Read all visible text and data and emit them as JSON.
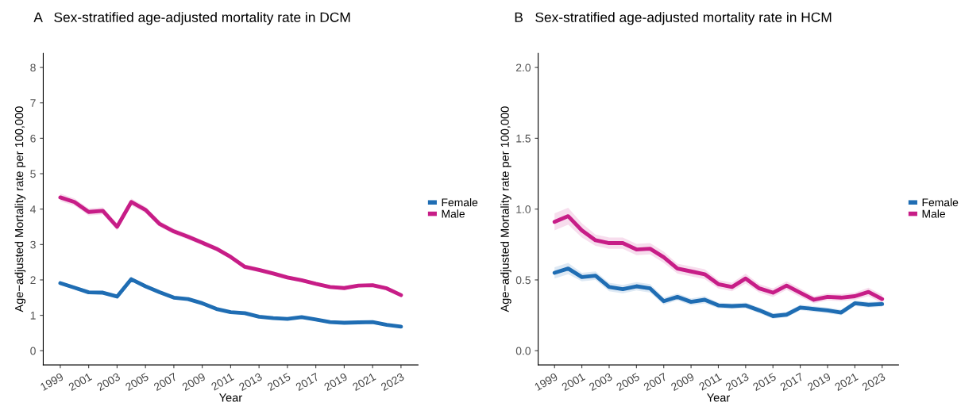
{
  "chart_data": [
    {
      "type": "line",
      "title": "A   Sex-stratified age-adjusted mortality rate in DCM",
      "xlabel": "Year",
      "ylabel": "Age−adjusted Mortality rate per 100,000",
      "x": [
        1999,
        2000,
        2001,
        2002,
        2003,
        2004,
        2005,
        2006,
        2007,
        2008,
        2009,
        2010,
        2011,
        2012,
        2013,
        2014,
        2015,
        2016,
        2017,
        2018,
        2019,
        2020,
        2021,
        2022,
        2023
      ],
      "series": [
        {
          "name": "Female",
          "color": "#1f6db3",
          "values": [
            1.91,
            1.78,
            1.65,
            1.64,
            1.53,
            2.02,
            1.82,
            1.65,
            1.5,
            1.46,
            1.34,
            1.18,
            1.09,
            1.06,
            0.96,
            0.92,
            0.9,
            0.95,
            0.88,
            0.81,
            0.79,
            0.8,
            0.81,
            0.73,
            0.68
          ],
          "lower": [
            1.86,
            1.73,
            1.6,
            1.59,
            1.48,
            1.96,
            1.77,
            1.6,
            1.46,
            1.42,
            1.3,
            1.14,
            1.05,
            1.02,
            0.92,
            0.88,
            0.86,
            0.91,
            0.84,
            0.77,
            0.75,
            0.76,
            0.77,
            0.69,
            0.64
          ],
          "upper": [
            1.96,
            1.83,
            1.7,
            1.69,
            1.58,
            2.08,
            1.87,
            1.7,
            1.54,
            1.5,
            1.38,
            1.22,
            1.13,
            1.1,
            1.0,
            0.96,
            0.94,
            0.99,
            0.92,
            0.85,
            0.83,
            0.84,
            0.85,
            0.77,
            0.72
          ]
        },
        {
          "name": "Male",
          "color": "#c71d87",
          "values": [
            4.33,
            4.2,
            3.92,
            3.95,
            3.5,
            4.2,
            3.98,
            3.58,
            3.37,
            3.22,
            3.05,
            2.88,
            2.65,
            2.37,
            2.28,
            2.18,
            2.07,
            1.99,
            1.89,
            1.8,
            1.77,
            1.84,
            1.85,
            1.76,
            1.57
          ],
          "lower": [
            4.22,
            4.1,
            3.82,
            3.85,
            3.4,
            4.1,
            3.89,
            3.5,
            3.29,
            3.14,
            2.98,
            2.81,
            2.59,
            2.31,
            2.22,
            2.12,
            2.01,
            1.94,
            1.84,
            1.75,
            1.72,
            1.79,
            1.8,
            1.71,
            1.52
          ],
          "upper": [
            4.44,
            4.3,
            4.02,
            4.05,
            3.6,
            4.3,
            4.07,
            3.66,
            3.45,
            3.3,
            3.12,
            2.95,
            2.71,
            2.43,
            2.34,
            2.24,
            2.13,
            2.04,
            1.94,
            1.85,
            1.82,
            1.89,
            1.9,
            1.81,
            1.62
          ]
        }
      ],
      "xlim": [
        1997.8,
        2024.2
      ],
      "xticks": [
        1999,
        2001,
        2003,
        2005,
        2007,
        2009,
        2011,
        2013,
        2015,
        2017,
        2019,
        2021,
        2023
      ],
      "ylim": [
        -0.4,
        8.4
      ],
      "yticks": [
        0,
        1,
        2,
        3,
        4,
        5,
        6,
        7,
        8
      ],
      "grid": false,
      "legend": "right"
    },
    {
      "type": "line",
      "title": "B   Sex-stratified age-adjusted mortality rate in HCM",
      "xlabel": "Year",
      "ylabel": "Age−adjusted Mortality rate per 100,000",
      "x": [
        1999,
        2000,
        2001,
        2002,
        2003,
        2004,
        2005,
        2006,
        2007,
        2008,
        2009,
        2010,
        2011,
        2012,
        2013,
        2014,
        2015,
        2016,
        2017,
        2018,
        2019,
        2020,
        2021,
        2022,
        2023
      ],
      "series": [
        {
          "name": "Female",
          "color": "#1f6db3",
          "values": [
            0.55,
            0.58,
            0.52,
            0.53,
            0.45,
            0.435,
            0.455,
            0.44,
            0.35,
            0.38,
            0.345,
            0.36,
            0.32,
            0.315,
            0.32,
            0.285,
            0.245,
            0.255,
            0.305,
            0.295,
            0.285,
            0.27,
            0.335,
            0.325,
            0.33
          ],
          "lower": [
            0.51,
            0.54,
            0.49,
            0.5,
            0.42,
            0.405,
            0.425,
            0.41,
            0.325,
            0.355,
            0.32,
            0.335,
            0.3,
            0.295,
            0.3,
            0.265,
            0.225,
            0.235,
            0.285,
            0.275,
            0.265,
            0.25,
            0.315,
            0.305,
            0.31
          ],
          "upper": [
            0.59,
            0.62,
            0.55,
            0.56,
            0.48,
            0.465,
            0.485,
            0.47,
            0.375,
            0.405,
            0.37,
            0.385,
            0.34,
            0.335,
            0.34,
            0.305,
            0.265,
            0.275,
            0.325,
            0.315,
            0.305,
            0.29,
            0.355,
            0.345,
            0.35
          ]
        },
        {
          "name": "Male",
          "color": "#c71d87",
          "values": [
            0.91,
            0.95,
            0.85,
            0.78,
            0.76,
            0.76,
            0.715,
            0.72,
            0.66,
            0.58,
            0.56,
            0.54,
            0.47,
            0.45,
            0.51,
            0.44,
            0.41,
            0.46,
            0.41,
            0.36,
            0.38,
            0.375,
            0.385,
            0.415,
            0.365
          ],
          "lower": [
            0.85,
            0.89,
            0.8,
            0.74,
            0.72,
            0.72,
            0.675,
            0.68,
            0.62,
            0.545,
            0.525,
            0.505,
            0.44,
            0.42,
            0.475,
            0.41,
            0.38,
            0.43,
            0.38,
            0.335,
            0.355,
            0.35,
            0.36,
            0.385,
            0.335
          ],
          "upper": [
            0.97,
            1.01,
            0.9,
            0.82,
            0.8,
            0.8,
            0.755,
            0.76,
            0.7,
            0.615,
            0.595,
            0.575,
            0.5,
            0.48,
            0.545,
            0.47,
            0.44,
            0.49,
            0.44,
            0.385,
            0.405,
            0.4,
            0.41,
            0.445,
            0.395
          ]
        }
      ],
      "xlim": [
        1997.8,
        2024.2
      ],
      "xticks": [
        1999,
        2001,
        2003,
        2005,
        2007,
        2009,
        2011,
        2013,
        2015,
        2017,
        2019,
        2021,
        2023
      ],
      "ylim": [
        -0.1,
        2.1
      ],
      "yticks": [
        {
          "value": 0,
          "label": "0.0"
        },
        {
          "value": 0.5,
          "label": "0.5"
        },
        {
          "value": 1,
          "label": "1.0"
        },
        {
          "value": 1.5,
          "label": "1.5"
        },
        {
          "value": 2,
          "label": "2.0"
        }
      ],
      "grid": false,
      "legend": "right"
    }
  ]
}
